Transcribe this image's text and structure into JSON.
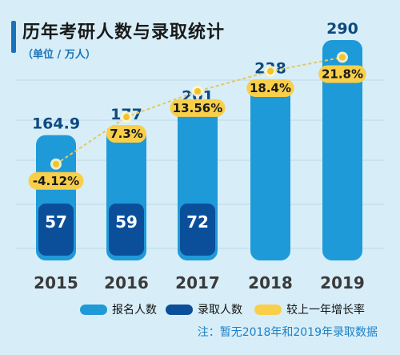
{
  "title": "历年考研人数与录取统计",
  "subtitle": "（单位 / 万人）",
  "note": "注：暂无2018年和2019年录取数据",
  "colors": {
    "background": "#d7eef8",
    "applicants": "#1e9ad8",
    "admitted": "#0b4f9a",
    "growth": "#f9cf4a",
    "growth_line": "#e9c65a"
  },
  "legend": [
    {
      "label": "报名人数",
      "color": "#1e9ad8"
    },
    {
      "label": "录取人数",
      "color": "#0b4f9a"
    },
    {
      "label": "较上一年增长率",
      "color": "#f9cf4a"
    }
  ],
  "chart_data": {
    "type": "bar",
    "categories": [
      "2015",
      "2016",
      "2017",
      "2018",
      "2019"
    ],
    "series": [
      {
        "name": "报名人数",
        "values": [
          164.9,
          177,
          201,
          238,
          290
        ],
        "labels": [
          "164.9",
          "177",
          "201",
          "238",
          "290"
        ]
      },
      {
        "name": "录取人数",
        "values": [
          57,
          59,
          72,
          null,
          null
        ],
        "labels": [
          "57",
          "59",
          "72",
          "",
          ""
        ]
      },
      {
        "name": "较上一年增长率",
        "values": [
          -4.12,
          7.3,
          13.56,
          18.4,
          21.8
        ],
        "labels": [
          "-4.12%",
          "7.3%",
          "13.56%",
          "18.4%",
          "21.8%"
        ]
      }
    ],
    "ylim": [
      0,
      290
    ],
    "grid": true
  }
}
